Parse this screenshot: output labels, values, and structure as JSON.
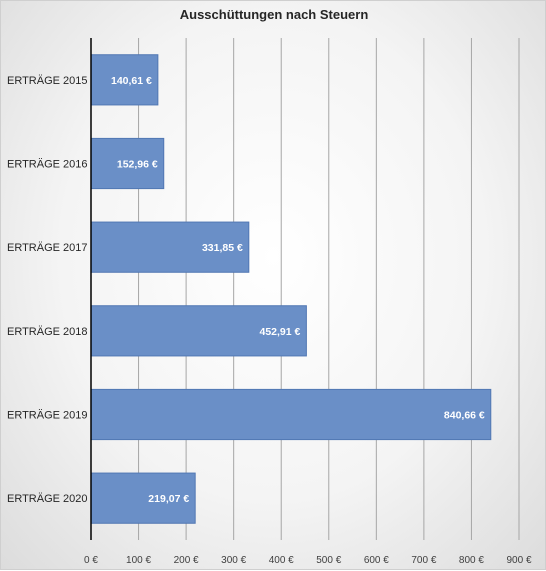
{
  "chart_data": {
    "type": "bar",
    "orientation": "horizontal",
    "title": "Ausschüttungen nach Steuern",
    "categories": [
      "ERTRÄGE 2015",
      "ERTRÄGE 2016",
      "ERTRÄGE 2017",
      "ERTRÄGE 2018",
      "ERTRÄGE 2019",
      "ERTRÄGE 2020"
    ],
    "values": [
      140.61,
      152.96,
      331.85,
      452.91,
      840.66,
      219.07
    ],
    "data_labels": [
      "140,61 €",
      "152,96 €",
      "331,85 €",
      "452,91 €",
      "840,66 €",
      "219,07 €"
    ],
    "xlim": [
      0,
      900
    ],
    "xticks": [
      0,
      100,
      200,
      300,
      400,
      500,
      600,
      700,
      800,
      900
    ],
    "xtick_labels": [
      "0 €",
      "100 €",
      "200 €",
      "300 €",
      "400 €",
      "500 €",
      "600 €",
      "700 €",
      "800 €",
      "900 €"
    ],
    "xlabel": "",
    "ylabel": "",
    "grid": "vertical",
    "legend": "none",
    "colors": {
      "bar_fill": "#6a8fc7",
      "bar_stroke": "#5177b3",
      "grid": "#a6a6a6",
      "axis": "#000000",
      "data_label_text": "#ffffff"
    }
  }
}
